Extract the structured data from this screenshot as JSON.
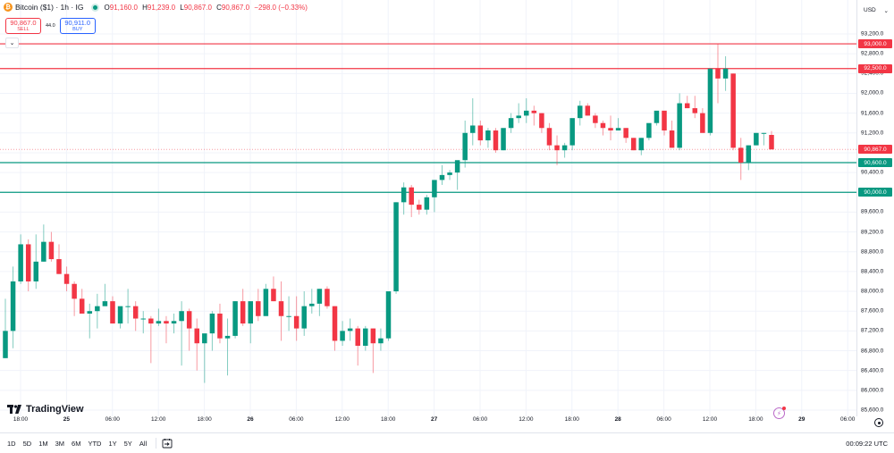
{
  "header": {
    "symbol_icon": "bitcoin-icon",
    "title": "Bitcoin ($1) · 1h · IG",
    "status_icon": "live-dot-icon",
    "ohlc": {
      "o_label": "O",
      "o": "91,160.0",
      "h_label": "H",
      "h": "91,239.0",
      "l_label": "L",
      "l": "90,867.0",
      "c_label": "C",
      "c": "90,867.0",
      "change": "−298.0 (−0.33%)"
    }
  },
  "trade": {
    "sell_price": "90,867.0",
    "sell_label": "SELL",
    "spread": "44.0",
    "buy_price": "90,911.0",
    "buy_label": "BUY"
  },
  "collapse_icon": "chevron-down-icon",
  "currency": {
    "label": "USD",
    "icon": "chevron-down-icon"
  },
  "price_axis": {
    "ticks": [
      "93,200.0",
      "92,800.0",
      "92,400.0",
      "92,000.0",
      "91,600.0",
      "91,200.0",
      "90,400.0",
      "89,600.0",
      "89,200.0",
      "88,800.0",
      "88,400.0",
      "88,000.0",
      "87,600.0",
      "87,200.0",
      "86,800.0",
      "86,400.0",
      "86,000.0",
      "85,600.0"
    ],
    "labels": [
      {
        "text": "93,000.0",
        "color": "#f23645"
      },
      {
        "text": "92,500.0",
        "color": "#f23645"
      },
      {
        "text": "90,867.0",
        "color": "#f23645"
      },
      {
        "text": "90,600.0",
        "color": "#089981"
      },
      {
        "text": "90,000.0",
        "color": "#089981"
      }
    ]
  },
  "time_axis": {
    "ticks": [
      "18:00",
      "25",
      "06:00",
      "12:00",
      "18:00",
      "26",
      "06:00",
      "12:00",
      "18:00",
      "27",
      "06:00",
      "12:00",
      "18:00",
      "28",
      "06:00",
      "12:00",
      "18:00",
      "29",
      "06:00"
    ]
  },
  "bottom_bar": {
    "ranges": [
      "1D",
      "5D",
      "1M",
      "3M",
      "6M",
      "YTD",
      "1Y",
      "5Y",
      "All"
    ],
    "goto_icon": "calendar-goto-icon",
    "clock": "00:09:22 UTC"
  },
  "branding": {
    "logo_icon": "tradingview-logo-icon",
    "text": "TradingView"
  },
  "colors": {
    "up": "#089981",
    "down": "#f23645",
    "grid": "#f0f3fa",
    "buy": "#2962ff"
  },
  "chart_data": {
    "type": "candlestick",
    "title": "Bitcoin ($1) · 1h · IG",
    "ylabel": "USD",
    "ylim": [
      85500,
      93300
    ],
    "xlabel": "",
    "x_tick_labels": [
      "18:00",
      "25",
      "06:00",
      "12:00",
      "18:00",
      "26",
      "06:00",
      "12:00",
      "18:00",
      "27",
      "06:00",
      "12:00",
      "18:00",
      "28",
      "06:00",
      "12:00",
      "18:00",
      "29",
      "06:00"
    ],
    "grid": true,
    "horizontal_lines": [
      {
        "price": 93000,
        "color": "#f23645"
      },
      {
        "price": 92500,
        "color": "#f23645"
      },
      {
        "price": 90867,
        "color": "#f23645",
        "style": "dotted",
        "label": "last price"
      },
      {
        "price": 90600,
        "color": "#089981"
      },
      {
        "price": 90000,
        "color": "#089981"
      }
    ],
    "last": {
      "open": 91160,
      "high": 91239,
      "low": 90867,
      "close": 90867,
      "change": -298,
      "change_pct": -0.33
    },
    "candles": [
      [
        86650,
        87850,
        86650,
        87200
      ],
      [
        87200,
        88500,
        86850,
        88200
      ],
      [
        88200,
        89150,
        88150,
        88950
      ],
      [
        88950,
        89050,
        88000,
        88200
      ],
      [
        88200,
        89150,
        88050,
        88600
      ],
      [
        88600,
        89350,
        88600,
        89000
      ],
      [
        89000,
        89200,
        88600,
        88650
      ],
      [
        88650,
        88950,
        88350,
        88350
      ],
      [
        88350,
        88500,
        88000,
        88150
      ],
      [
        88150,
        88200,
        87500,
        87850
      ],
      [
        87850,
        88050,
        87600,
        87550
      ],
      [
        87550,
        87750,
        87050,
        87600
      ],
      [
        87600,
        87950,
        87250,
        87700
      ],
      [
        87700,
        88150,
        87700,
        87800
      ],
      [
        87800,
        87900,
        87350,
        87350
      ],
      [
        87350,
        87600,
        87250,
        87700
      ],
      [
        87700,
        88050,
        87350,
        87700
      ],
      [
        87700,
        87800,
        87200,
        87450
      ],
      [
        87450,
        87600,
        87150,
        87450
      ],
      [
        87450,
        87500,
        86550,
        87350
      ],
      [
        87350,
        87650,
        87300,
        87400
      ],
      [
        87400,
        87500,
        86950,
        87350
      ],
      [
        87350,
        87550,
        87150,
        87400
      ],
      [
        87400,
        87800,
        86500,
        87600
      ],
      [
        87600,
        87650,
        86800,
        87250
      ],
      [
        87250,
        87450,
        86400,
        86950
      ],
      [
        86950,
        87100,
        86150,
        87150
      ],
      [
        87150,
        87600,
        86800,
        87550
      ],
      [
        87550,
        87750,
        86950,
        87050
      ],
      [
        87050,
        87450,
        86300,
        87100
      ],
      [
        87100,
        87800,
        87050,
        87800
      ],
      [
        87800,
        88050,
        87300,
        87350
      ],
      [
        87350,
        87550,
        86950,
        87800
      ],
      [
        87800,
        88050,
        87400,
        87500
      ],
      [
        87500,
        88150,
        87500,
        88050
      ],
      [
        88050,
        88300,
        87800,
        87800
      ],
      [
        87800,
        88200,
        87000,
        87500
      ],
      [
        87500,
        87900,
        87200,
        87500
      ],
      [
        87500,
        87900,
        87000,
        87250
      ],
      [
        87250,
        88000,
        87100,
        87700
      ],
      [
        87700,
        88050,
        87550,
        87750
      ],
      [
        87750,
        88050,
        87500,
        88050
      ],
      [
        88050,
        88100,
        87650,
        87700
      ],
      [
        87700,
        87700,
        86800,
        87000
      ],
      [
        87000,
        87400,
        86900,
        87200
      ],
      [
        87200,
        87450,
        87000,
        87250
      ],
      [
        87250,
        87300,
        86500,
        86900
      ],
      [
        86900,
        87300,
        86800,
        87250
      ],
      [
        87250,
        87250,
        86350,
        86950
      ],
      [
        86950,
        87250,
        86800,
        87050
      ],
      [
        87050,
        87950,
        87000,
        88000
      ],
      [
        88000,
        89800,
        87950,
        89800
      ],
      [
        89800,
        90200,
        89550,
        90100
      ],
      [
        90100,
        90150,
        89500,
        89750
      ],
      [
        89750,
        89850,
        89550,
        89650
      ],
      [
        89650,
        89950,
        89550,
        89900
      ],
      [
        89900,
        90050,
        89600,
        90250
      ],
      [
        90250,
        90550,
        90150,
        90350
      ],
      [
        90350,
        90450,
        90250,
        90400
      ],
      [
        90400,
        90600,
        90050,
        90650
      ],
      [
        90650,
        91450,
        90500,
        91200
      ],
      [
        91200,
        91900,
        90950,
        91350
      ],
      [
        91350,
        91450,
        90950,
        91050
      ],
      [
        91050,
        91300,
        90900,
        91250
      ],
      [
        91250,
        91300,
        90800,
        90850
      ],
      [
        90850,
        91150,
        90850,
        91300
      ],
      [
        91300,
        91600,
        91200,
        91500
      ],
      [
        91500,
        91800,
        91400,
        91550
      ],
      [
        91550,
        91900,
        91400,
        91650
      ],
      [
        91650,
        91750,
        91350,
        91600
      ],
      [
        91600,
        91600,
        91200,
        91300
      ],
      [
        91300,
        91400,
        90850,
        90950
      ],
      [
        90950,
        91150,
        90550,
        90850
      ],
      [
        90850,
        91000,
        90700,
        90950
      ],
      [
        90950,
        91350,
        90850,
        91500
      ],
      [
        91500,
        91850,
        91350,
        91750
      ],
      [
        91750,
        91800,
        91550,
        91550
      ],
      [
        91550,
        91600,
        91300,
        91400
      ],
      [
        91400,
        91450,
        91150,
        91300
      ],
      [
        91300,
        91550,
        91050,
        91250
      ],
      [
        91250,
        91500,
        91250,
        91300
      ],
      [
        91300,
        91300,
        91000,
        91100
      ],
      [
        91100,
        91100,
        90850,
        90850
      ],
      [
        90850,
        91100,
        90750,
        91100
      ],
      [
        91100,
        91300,
        91050,
        91400
      ],
      [
        91400,
        91600,
        91350,
        91650
      ],
      [
        91650,
        91600,
        91150,
        91250
      ],
      [
        91250,
        91450,
        90900,
        90900
      ],
      [
        90900,
        92000,
        90850,
        91800
      ],
      [
        91800,
        91950,
        91700,
        91700
      ],
      [
        91700,
        91950,
        91500,
        91600
      ],
      [
        91600,
        91700,
        91250,
        91200
      ],
      [
        91200,
        92500,
        91150,
        92500
      ],
      [
        92500,
        93000,
        91800,
        92300
      ],
      [
        92300,
        92750,
        92050,
        92500
      ],
      [
        92400,
        92400,
        90850,
        90900
      ],
      [
        90900,
        91100,
        90250,
        90600
      ],
      [
        90600,
        90950,
        90450,
        90950
      ],
      [
        90950,
        91200,
        90950,
        91200
      ],
      [
        91200,
        91200,
        90950,
        91200
      ],
      [
        91160,
        91239,
        90867,
        90867
      ]
    ]
  }
}
